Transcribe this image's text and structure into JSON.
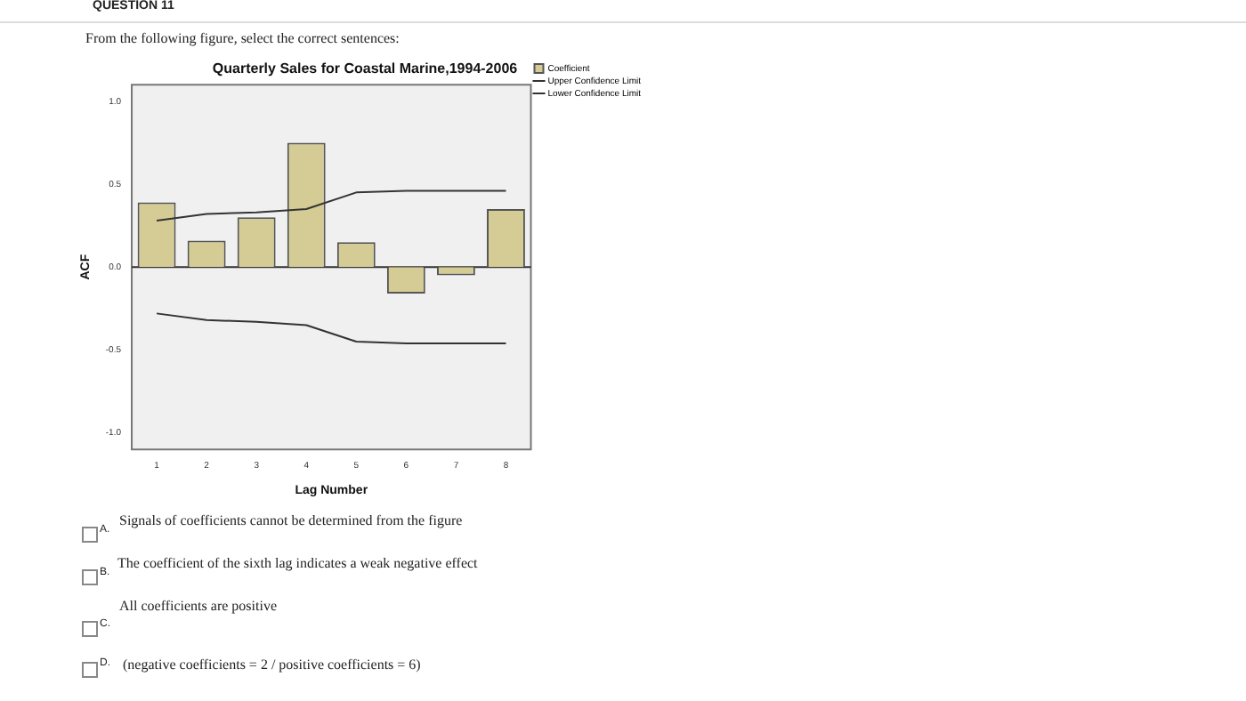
{
  "chart_data": {
    "type": "bar",
    "title": "Quarterly Sales for Coastal Marine,1994-2006",
    "xlabel": "Lag Number",
    "ylabel": "ACF",
    "categories": [
      "1",
      "2",
      "3",
      "4",
      "5",
      "6",
      "7",
      "8"
    ],
    "series": [
      {
        "name": "Coefficient",
        "color": "#d4cc94",
        "values": [
          0.39,
          0.16,
          0.3,
          0.75,
          0.15,
          -0.16,
          -0.05,
          0.35
        ]
      },
      {
        "name": "Upper Confidence Limit",
        "type": "line",
        "color": "#333333",
        "values": [
          0.28,
          0.32,
          0.33,
          0.35,
          0.45,
          0.46,
          0.46,
          0.46
        ]
      },
      {
        "name": "Lower Confidence Limit",
        "type": "line",
        "color": "#333333",
        "values": [
          -0.28,
          -0.32,
          -0.33,
          -0.35,
          -0.45,
          -0.46,
          -0.46,
          -0.46
        ]
      }
    ],
    "ylim": [
      -1.1,
      1.1
    ],
    "yticks": [
      {
        "value": -1,
        "label": "-1.0"
      },
      {
        "value": -0.5,
        "label": "-0.5"
      },
      {
        "value": 0,
        "label": "0.0"
      },
      {
        "value": 0.5,
        "label": "0.5"
      },
      {
        "value": 1,
        "label": "1.0"
      }
    ],
    "ref_lines": [
      {
        "axis": "y",
        "value": 0,
        "color": "#333333"
      }
    ],
    "legend": "top right",
    "marker": "none",
    "grid": false,
    "annotations": [
      "QUESTION 11",
      "From the following figure, select the correct sentences:",
      "A.",
      "Signals of coefficients cannot be determined from the figure",
      "B.",
      "The coefficient of the sixth lag indicates a weak negative effect",
      "C.",
      "All coefficients are positive",
      "D.",
      "(negative coefficients = 2 / positive coefficients = 6)"
    ]
  }
}
